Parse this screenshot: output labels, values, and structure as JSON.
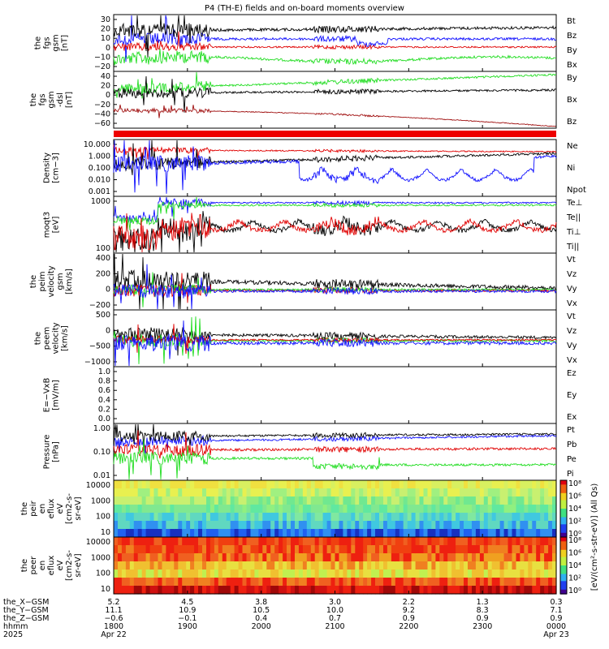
{
  "title": "P4 (TH-E) fields and on-board moments overview",
  "colors": {
    "black": "#000000",
    "red": "#e00000",
    "green": "#22dd22",
    "blue": "#1010ff",
    "darkred": "#a01010"
  },
  "chart_data": [
    {
      "type": "line",
      "panel": "fgs_gsm",
      "ylabel": [
        "the",
        "fgs",
        "gsm",
        "[nT]"
      ],
      "yticks": [
        "30",
        "20",
        "10",
        "0",
        "−10",
        "−20"
      ],
      "ylim": [
        -25,
        35
      ],
      "series": [
        {
          "name": "Bt",
          "color": "#000000",
          "level": 18
        },
        {
          "name": "Bz",
          "color": "#e00000",
          "level": 5
        },
        {
          "name": "By",
          "color": "#22dd22",
          "level": -12
        },
        {
          "name": "Bx",
          "color": "#1010ff",
          "level": 10
        }
      ]
    },
    {
      "type": "line",
      "panel": "fgs_gsm_dsl",
      "ylabel": [
        "the",
        "fgs",
        "gsm",
        "-dsl",
        "[nT]"
      ],
      "yticks": [
        "40",
        "20",
        "0",
        "−20",
        "−40",
        "−60"
      ],
      "ylim": [
        -70,
        42
      ],
      "series": [
        {
          "name": "By",
          "color": "#22dd22",
          "level": 18
        },
        {
          "name": "Bx",
          "color": "#000000",
          "level": 2
        },
        {
          "name": "Bz",
          "color": "#a01010",
          "level": -35
        }
      ]
    },
    {
      "type": "line",
      "panel": "density",
      "ylabel": [
        "Density",
        "[cm−3]"
      ],
      "yticks": [
        "10.000",
        "1.000",
        "0.100",
        "0.010",
        "0.001"
      ],
      "scale": "log",
      "series": [
        {
          "name": "Ne",
          "color": "#e00000"
        },
        {
          "name": "Ni",
          "color": "#000000"
        },
        {
          "name": "Npot",
          "color": "#1010ff"
        }
      ]
    },
    {
      "type": "line",
      "panel": "temperature",
      "ylabel": [
        "moqt3",
        "[eV]"
      ],
      "yticks": [
        "1000",
        "100"
      ],
      "scale": "log",
      "series": [
        {
          "name": "Te⊥",
          "color": "#e00000"
        },
        {
          "name": "Te||",
          "color": "#000000"
        },
        {
          "name": "Ti⊥",
          "color": "#e00000"
        },
        {
          "name": "Ti||",
          "color": "#22dd22"
        }
      ]
    },
    {
      "type": "line",
      "panel": "peim_velocity",
      "ylabel": [
        "the",
        "peim",
        "velocity",
        "gsm",
        "[km/s]"
      ],
      "yticks": [
        "400",
        "200",
        "0",
        "−200"
      ],
      "ylim": [
        -250,
        450
      ],
      "series": [
        {
          "name": "Vt",
          "color": "#000000"
        },
        {
          "name": "Vz",
          "color": "#e00000"
        },
        {
          "name": "Vy",
          "color": "#22dd22"
        },
        {
          "name": "Vx",
          "color": "#1010ff"
        }
      ]
    },
    {
      "type": "line",
      "panel": "peem_velocity",
      "ylabel": [
        "the",
        "peem",
        "velocity",
        "[km/s]"
      ],
      "yticks": [
        "500",
        "0",
        "−500",
        "−1000"
      ],
      "ylim": [
        -1100,
        700
      ],
      "series": [
        {
          "name": "Vt",
          "color": "#000000"
        },
        {
          "name": "Vz",
          "color": "#e00000"
        },
        {
          "name": "Vy",
          "color": "#22dd22"
        },
        {
          "name": "Vx",
          "color": "#1010ff"
        }
      ]
    },
    {
      "type": "line",
      "panel": "efield",
      "ylabel": [
        "E=−VxB",
        "[mV/m]"
      ],
      "yticks": [
        "1.0",
        "0.8",
        "0.6",
        "0.4",
        "0.2",
        "0.0"
      ],
      "ylim": [
        0,
        1
      ],
      "series": [
        {
          "name": "Ez",
          "color": "#e00000"
        },
        {
          "name": "Ey",
          "color": "#22dd22"
        },
        {
          "name": "Ex",
          "color": "#1010ff"
        }
      ]
    },
    {
      "type": "line",
      "panel": "pressure",
      "ylabel": [
        "Pressure",
        "[nPa]"
      ],
      "yticks": [
        "1.00",
        "0.10",
        "0.01"
      ],
      "scale": "log",
      "series": [
        {
          "name": "Pt",
          "color": "#000000"
        },
        {
          "name": "Pb",
          "color": "#e00000"
        },
        {
          "name": "Pe",
          "color": "#22dd22"
        },
        {
          "name": "Pi",
          "color": "#1010ff"
        }
      ]
    },
    {
      "type": "heatmap",
      "panel": "peir_spectrogram",
      "ylabel": [
        "the",
        "peir",
        "en",
        "eflux",
        "eV",
        "[cm2-s-",
        "sr-eV]"
      ],
      "yticks": [
        "10000",
        "1000",
        "100",
        "10"
      ],
      "scale": "log"
    },
    {
      "type": "heatmap",
      "panel": "peer_spectrogram",
      "ylabel": [
        "the",
        "peer",
        "en",
        "eflux",
        "eV",
        "[cm2-s-",
        "sr-eV]"
      ],
      "yticks": [
        "10000",
        "1000",
        "100",
        "10"
      ],
      "scale": "log"
    }
  ],
  "colorbar": {
    "ticks": [
      "10⁸",
      "10⁶",
      "10⁴",
      "10²",
      "10⁰"
    ],
    "label": "[eV/(cm²-s-str-eV)] (All Qs)"
  },
  "xaxis": {
    "row_labels": [
      "the_X−GSM",
      "the_Y−GSM",
      "the_Z−GSM",
      "hhmm",
      "2025"
    ],
    "columns": [
      [
        "5.2",
        "11.1",
        "−0.6",
        "1800",
        "Apr 22"
      ],
      [
        "4.5",
        "10.9",
        "−0.1",
        "1900",
        ""
      ],
      [
        "3.8",
        "10.5",
        "0.4",
        "2000",
        ""
      ],
      [
        "3.0",
        "10.0",
        "0.7",
        "2100",
        ""
      ],
      [
        "2.2",
        "9.2",
        "0.9",
        "2200",
        ""
      ],
      [
        "1.3",
        "8.3",
        "0.9",
        "2300",
        ""
      ],
      [
        "0.3",
        "7.1",
        "0.9",
        "0000",
        "Apr 23"
      ]
    ]
  }
}
